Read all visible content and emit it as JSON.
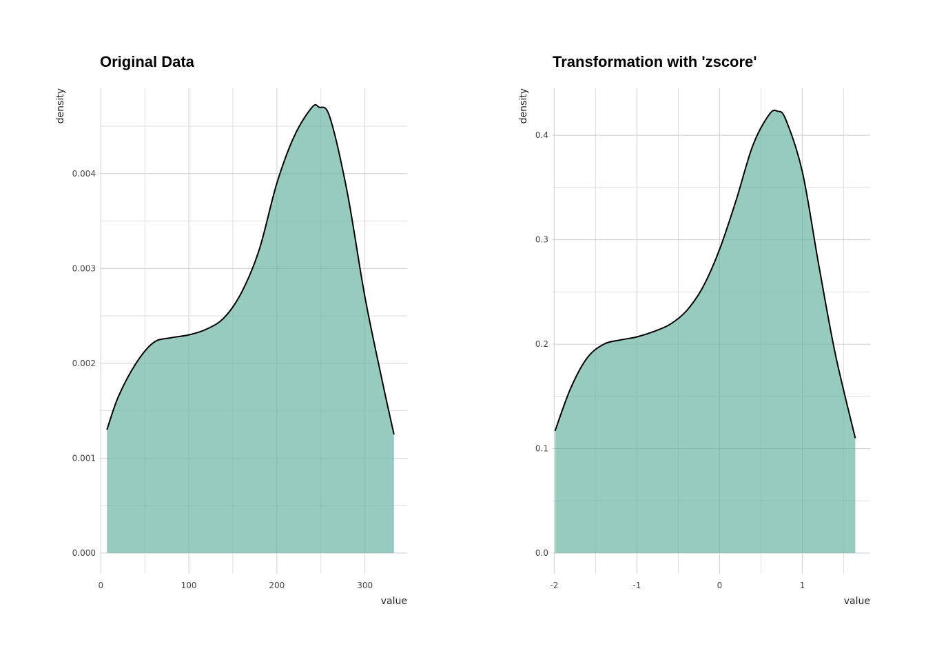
{
  "chart_data": [
    {
      "type": "area",
      "title": "Original Data",
      "xlabel": "value",
      "ylabel": "density",
      "xlim": [
        -1,
        348
      ],
      "ylim": [
        0,
        0.0049
      ],
      "xticks": [
        0,
        100,
        200,
        300
      ],
      "xtick_labels": [
        "0",
        "100",
        "200",
        "300"
      ],
      "yticks": [
        0,
        0.001,
        0.002,
        0.003,
        0.004
      ],
      "ytick_labels": [
        "0.000",
        "0.001",
        "0.002",
        "0.003",
        "0.004"
      ],
      "fill_color": "#66b2a0",
      "line_color": "#000000",
      "grid": true,
      "series": [
        {
          "x": [
            7,
            20,
            40,
            60,
            80,
            100,
            120,
            140,
            160,
            180,
            200,
            220,
            240,
            248,
            260,
            280,
            300,
            320,
            333
          ],
          "y": [
            0.0013,
            0.00165,
            0.002,
            0.00222,
            0.00227,
            0.0023,
            0.00236,
            0.00248,
            0.00275,
            0.0032,
            0.0039,
            0.0044,
            0.0047,
            0.0047,
            0.0046,
            0.0038,
            0.0027,
            0.0018,
            0.00125
          ]
        }
      ]
    },
    {
      "type": "area",
      "title": "Transformation with 'zscore'",
      "xlabel": "value",
      "ylabel": "density",
      "xlim": [
        -2.02,
        1.82
      ],
      "ylim": [
        0,
        0.445
      ],
      "xticks": [
        -2,
        -1,
        0,
        1
      ],
      "xtick_labels": [
        "-2",
        "-1",
        "0",
        "1"
      ],
      "yticks": [
        0,
        0.1,
        0.2,
        0.3,
        0.4
      ],
      "ytick_labels": [
        "0.0",
        "0.1",
        "0.2",
        "0.3",
        "0.4"
      ],
      "fill_color": "#66b2a0",
      "line_color": "#000000",
      "grid": true,
      "series": [
        {
          "x": [
            -1.99,
            -1.8,
            -1.6,
            -1.4,
            -1.2,
            -1.0,
            -0.8,
            -0.6,
            -0.4,
            -0.2,
            0.0,
            0.2,
            0.4,
            0.6,
            0.7,
            0.8,
            1.0,
            1.2,
            1.4,
            1.64
          ],
          "y": [
            0.117,
            0.158,
            0.187,
            0.2,
            0.204,
            0.207,
            0.212,
            0.219,
            0.232,
            0.255,
            0.291,
            0.338,
            0.39,
            0.42,
            0.423,
            0.415,
            0.365,
            0.275,
            0.19,
            0.11
          ]
        }
      ]
    }
  ]
}
